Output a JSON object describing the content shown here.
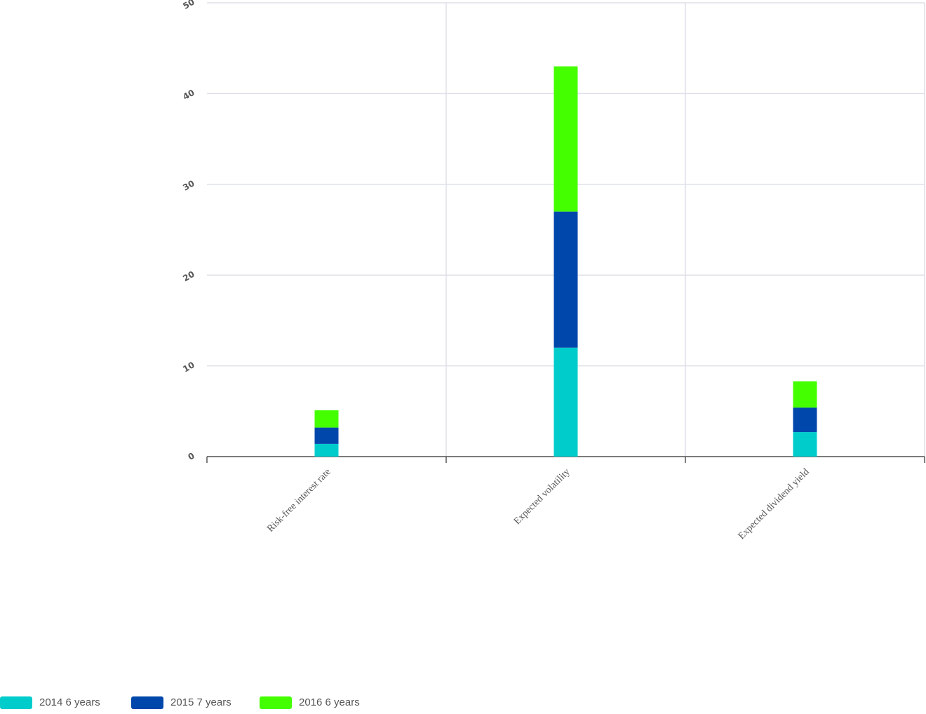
{
  "chart_data": {
    "type": "bar",
    "stacked": true,
    "categories": [
      "Risk-free interest rate",
      "Expected volatility",
      "Expected dividend yield"
    ],
    "series": [
      {
        "name": "2014 6 years",
        "color": "#00cccc",
        "values": [
          1.4,
          12,
          2.7
        ]
      },
      {
        "name": "2015 7 years",
        "color": "#0047ab",
        "values": [
          1.8,
          15,
          2.7
        ]
      },
      {
        "name": "2016 6 years",
        "color": "#44ff00",
        "values": [
          1.9,
          16,
          2.9
        ]
      }
    ],
    "ylim": [
      0,
      50
    ],
    "yticks": [
      0,
      10,
      20,
      30,
      40,
      50
    ],
    "grid": true,
    "legend": "bottom-left"
  }
}
